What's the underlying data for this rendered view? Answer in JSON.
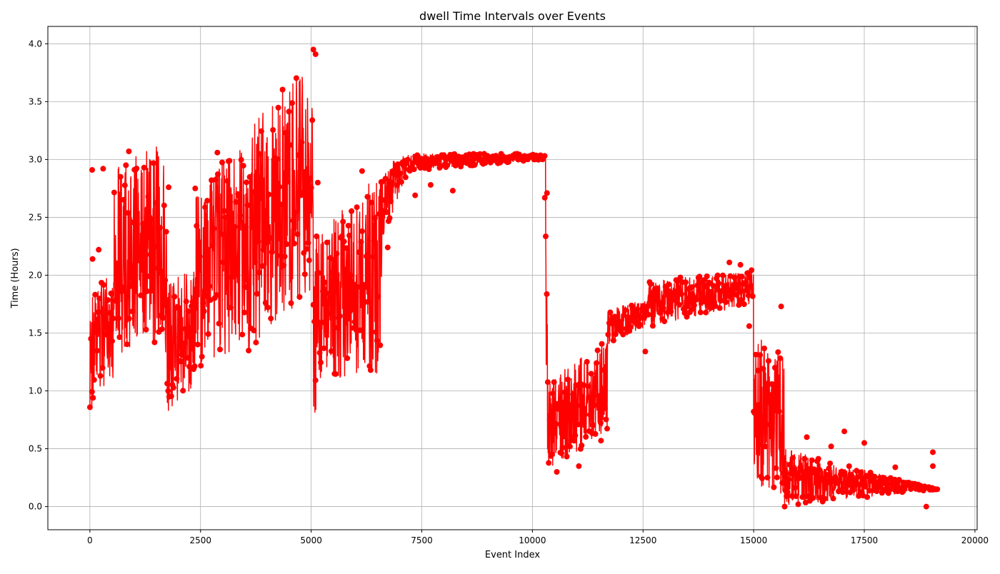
{
  "chart_data": {
    "type": "line",
    "title": "dwell Time Intervals over Events",
    "xlabel": "Event Index",
    "ylabel": "Time (Hours)",
    "xlim": [
      -950,
      20050
    ],
    "ylim": [
      -0.2,
      4.15
    ],
    "xticks": [
      0,
      2500,
      5000,
      7500,
      10000,
      12500,
      15000,
      17500,
      20000
    ],
    "yticks": [
      0.0,
      0.5,
      1.0,
      1.5,
      2.0,
      2.5,
      3.0,
      3.5,
      4.0
    ],
    "xtick_labels": [
      "0",
      "2500",
      "5000",
      "7500",
      "10000",
      "12500",
      "15000",
      "17500",
      "20000"
    ],
    "ytick_labels": [
      "0.0",
      "0.5",
      "1.0",
      "1.5",
      "2.0",
      "2.5",
      "3.0",
      "3.5",
      "4.0"
    ],
    "grid": true,
    "series": [
      {
        "color": "#ff0000",
        "marker": "circle",
        "x_range": [
          0,
          19150
        ],
        "segments": [
          {
            "x": [
              0,
              100
            ],
            "y": [
              [
                0.8,
                1.7
              ],
              [
                0.8,
                2.0
              ]
            ]
          },
          {
            "x": [
              100,
              550
            ],
            "y": [
              [
                0.9,
                1.9
              ],
              [
                1.1,
                2.05
              ]
            ]
          },
          {
            "x": [
              550,
              1700
            ],
            "y": [
              [
                1.3,
                2.95
              ],
              [
                1.45,
                3.15
              ]
            ]
          },
          {
            "x": [
              1700,
              1750
            ],
            "y": [
              [
                1.45,
                3.15
              ],
              [
                0.8,
                2.0
              ]
            ]
          },
          {
            "x": [
              1750,
              2400
            ],
            "y": [
              [
                0.8,
                1.95
              ],
              [
                1.05,
                2.05
              ]
            ]
          },
          {
            "x": [
              2400,
              3700
            ],
            "y": [
              [
                1.2,
                2.75
              ],
              [
                1.35,
                3.25
              ]
            ]
          },
          {
            "x": [
              3700,
              5050
            ],
            "y": [
              [
                1.4,
                3.35
              ],
              [
                1.85,
                3.9
              ]
            ]
          },
          {
            "x": [
              5050,
              5150
            ],
            "y": [
              [
                0.8,
                2.4
              ],
              [
                0.75,
                2.4
              ]
            ]
          },
          {
            "x": [
              5150,
              6600
            ],
            "y": [
              [
                1.1,
                2.35
              ],
              [
                1.15,
                2.95
              ]
            ]
          },
          {
            "x": [
              6600,
              7200
            ],
            "y": [
              [
                2.3,
                2.95
              ],
              [
                2.9,
                3.05
              ]
            ]
          },
          {
            "x": [
              7200,
              10300
            ],
            "y": [
              [
                2.9,
                3.05
              ],
              [
                3.0,
                3.05
              ]
            ]
          },
          {
            "x": [
              10300,
              10350
            ],
            "y": [
              [
                0.85,
                2.7
              ],
              [
                0.35,
                1.6
              ]
            ]
          },
          {
            "x": [
              10350,
              11700
            ],
            "y": [
              [
                0.3,
                1.1
              ],
              [
                0.65,
                1.45
              ]
            ]
          },
          {
            "x": [
              11700,
              12600
            ],
            "y": [
              [
                1.4,
                1.7
              ],
              [
                1.55,
                1.8
              ]
            ]
          },
          {
            "x": [
              12600,
              15000
            ],
            "y": [
              [
                1.55,
                1.95
              ],
              [
                1.75,
                2.05
              ]
            ]
          },
          {
            "x": [
              15000,
              15700
            ],
            "y": [
              [
                0.15,
                1.5
              ],
              [
                0.1,
                1.3
              ]
            ]
          },
          {
            "x": [
              15700,
              19150
            ],
            "y": [
              [
                0.0,
                0.5
              ],
              [
                0.15,
                0.15
              ]
            ]
          }
        ],
        "highlights": [
          [
            50,
            2.91
          ],
          [
            60,
            2.14
          ],
          [
            200,
            2.22
          ],
          [
            300,
            2.92
          ],
          [
            880,
            3.07
          ],
          [
            1780,
            2.76
          ],
          [
            2380,
            2.75
          ],
          [
            2880,
            3.06
          ],
          [
            5050,
            3.95
          ],
          [
            5100,
            3.91
          ],
          [
            5150,
            2.8
          ],
          [
            6150,
            2.9
          ],
          [
            6730,
            2.24
          ],
          [
            7350,
            2.69
          ],
          [
            7700,
            2.78
          ],
          [
            8200,
            2.73
          ],
          [
            10280,
            2.67
          ],
          [
            10330,
            2.71
          ],
          [
            10550,
            0.3
          ],
          [
            11050,
            0.35
          ],
          [
            11550,
            0.57
          ],
          [
            12550,
            1.34
          ],
          [
            14450,
            2.11
          ],
          [
            14700,
            2.09
          ],
          [
            14900,
            1.56
          ],
          [
            15620,
            1.73
          ],
          [
            15700,
            0.0
          ],
          [
            16200,
            0.6
          ],
          [
            16750,
            0.52
          ],
          [
            17050,
            0.65
          ],
          [
            17500,
            0.55
          ],
          [
            18200,
            0.34
          ],
          [
            18900,
            0.0
          ],
          [
            19050,
            0.47
          ],
          [
            19050,
            0.35
          ],
          [
            19150,
            0.15
          ]
        ]
      }
    ]
  }
}
